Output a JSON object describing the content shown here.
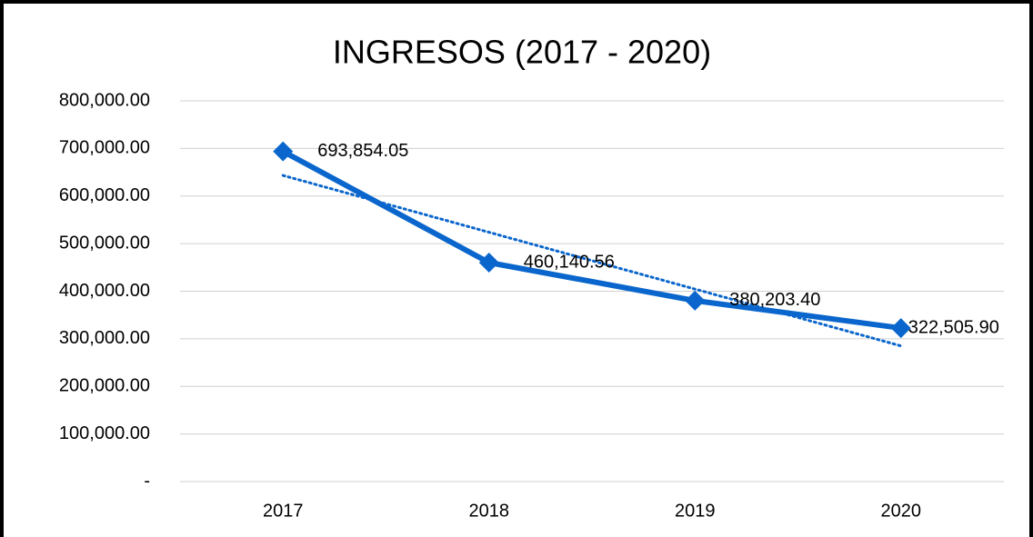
{
  "chart_data": {
    "type": "line",
    "title": "INGRESOS (2017 - 2020)",
    "categories": [
      "2017",
      "2018",
      "2019",
      "2020"
    ],
    "series": [
      {
        "name": "Ingresos",
        "color": "#0a66cc",
        "values": [
          693854.05,
          460140.56,
          380203.4,
          322505.9
        ],
        "value_labels": [
          "693,854.05",
          "460,140.56",
          "380,203.40",
          "322,505.90"
        ]
      }
    ],
    "trendline": "linear",
    "ylim": [
      0,
      800000
    ],
    "yticks": [
      {
        "value": 0,
        "label": "-"
      },
      {
        "value": 100000,
        "label": "100,000.00"
      },
      {
        "value": 200000,
        "label": "200,000.00"
      },
      {
        "value": 300000,
        "label": "300,000.00"
      },
      {
        "value": 400000,
        "label": "400,000.00"
      },
      {
        "value": 500000,
        "label": "500,000.00"
      },
      {
        "value": 600000,
        "label": "600,000.00"
      },
      {
        "value": 700000,
        "label": "700,000.00"
      },
      {
        "value": 800000,
        "label": "800,000.00"
      }
    ],
    "grid": true
  }
}
